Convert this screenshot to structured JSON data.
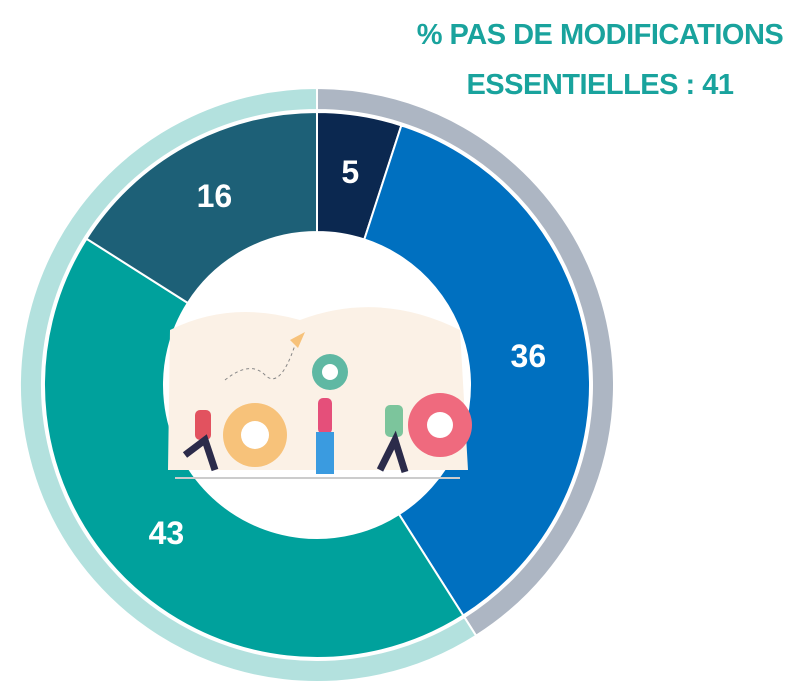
{
  "chart_data": {
    "type": "donut",
    "title": "% PAS DE MODIFICATIONS ESSENTIELLES : 41",
    "values": [
      5,
      36,
      43,
      16
    ],
    "colors": [
      "#0b2850",
      "#0070c0",
      "#00a19c",
      "#1d6077"
    ],
    "outer_ring": {
      "values": [
        41,
        59
      ],
      "colors": [
        "#adb6c3",
        "#b3e1de"
      ]
    }
  }
}
